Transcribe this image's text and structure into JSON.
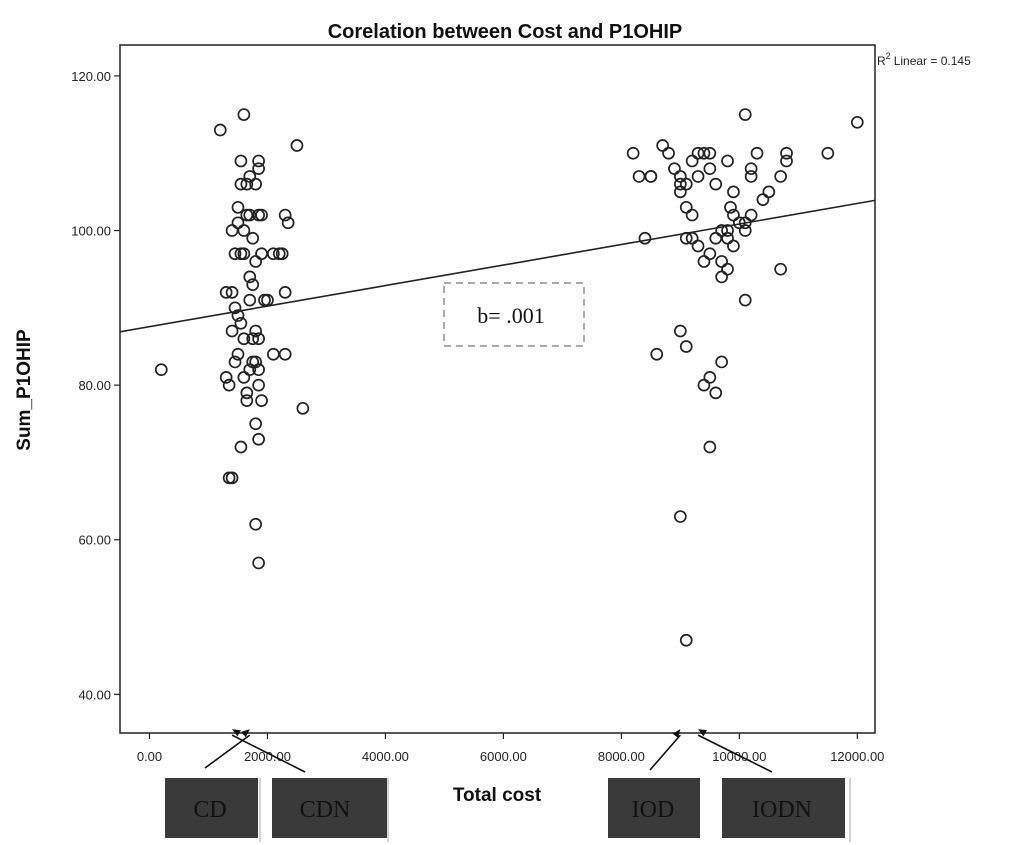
{
  "chart_data": {
    "type": "scatter",
    "title": "Corelation between Cost and P1OHIP",
    "xlabel": "Total cost",
    "ylabel": "Sum_P1OHIP",
    "xlim": [
      -500,
      12300
    ],
    "ylim": [
      35,
      124
    ],
    "x_ticks": [
      0,
      2000,
      4000,
      6000,
      8000,
      10000,
      12000
    ],
    "x_tick_labels": [
      "0.00",
      "2000.00",
      "4000.00",
      "6000.00",
      "8000.00",
      "10000.00",
      "12000.00"
    ],
    "y_ticks": [
      40,
      60,
      80,
      100,
      120
    ],
    "y_tick_labels": [
      "40.00",
      "60.00",
      "80.00",
      "100.00",
      "120.00"
    ],
    "grid": false,
    "r2_label": "Linear = 0.145",
    "r2_prefix": "R",
    "r2_sup": "2",
    "fit_line": {
      "x": [
        -500,
        12300
      ],
      "y": [
        86.9,
        103.9
      ]
    },
    "annotation": {
      "text": "b= .001",
      "x": 6200,
      "y": 89.5
    },
    "group_labels": [
      {
        "text": "CD",
        "arrow_to": [
          1700,
          35.5
        ]
      },
      {
        "text": "CDN",
        "arrow_to": [
          1400,
          35.5
        ]
      },
      {
        "text": "IOD",
        "arrow_to": [
          9000,
          35.5
        ]
      },
      {
        "text": "IODN",
        "arrow_to": [
          9300,
          35.5
        ]
      }
    ],
    "points": [
      [
        200,
        82
      ],
      [
        1200,
        113
      ],
      [
        1600,
        115
      ],
      [
        1300,
        92
      ],
      [
        1400,
        92
      ],
      [
        1300,
        81
      ],
      [
        1350,
        80
      ],
      [
        1400,
        87
      ],
      [
        1450,
        90
      ],
      [
        1500,
        89
      ],
      [
        1500,
        84
      ],
      [
        1450,
        83
      ],
      [
        1550,
        88
      ],
      [
        1600,
        86
      ],
      [
        1600,
        81
      ],
      [
        1650,
        79
      ],
      [
        1650,
        78
      ],
      [
        1700,
        82
      ],
      [
        1700,
        91
      ],
      [
        1750,
        86
      ],
      [
        1800,
        87
      ],
      [
        1850,
        86
      ],
      [
        1750,
        93
      ],
      [
        1800,
        96
      ],
      [
        1700,
        94
      ],
      [
        1600,
        97
      ],
      [
        1550,
        97
      ],
      [
        1450,
        97
      ],
      [
        1400,
        100
      ],
      [
        1500,
        101
      ],
      [
        1600,
        100
      ],
      [
        1500,
        103
      ],
      [
        1650,
        102
      ],
      [
        1700,
        102
      ],
      [
        1550,
        106
      ],
      [
        1650,
        106
      ],
      [
        1700,
        107
      ],
      [
        1800,
        106
      ],
      [
        1550,
        109
      ],
      [
        1850,
        108
      ],
      [
        1850,
        109
      ],
      [
        1850,
        102
      ],
      [
        1900,
        102
      ],
      [
        1750,
        99
      ],
      [
        1900,
        97
      ],
      [
        2000,
        91
      ],
      [
        1950,
        91
      ],
      [
        2100,
        97
      ],
      [
        2200,
        97
      ],
      [
        2250,
        97
      ],
      [
        2300,
        102
      ],
      [
        2350,
        101
      ],
      [
        2100,
        84
      ],
      [
        2300,
        84
      ],
      [
        2300,
        92
      ],
      [
        2500,
        111
      ],
      [
        2600,
        77
      ],
      [
        1850,
        80
      ],
      [
        1850,
        82
      ],
      [
        1900,
        78
      ],
      [
        1750,
        83
      ],
      [
        1800,
        83
      ],
      [
        1800,
        75
      ],
      [
        1850,
        73
      ],
      [
        1550,
        72
      ],
      [
        1350,
        68
      ],
      [
        1400,
        68
      ],
      [
        1800,
        62
      ],
      [
        1850,
        57
      ],
      [
        8200,
        110
      ],
      [
        8300,
        107
      ],
      [
        8500,
        107
      ],
      [
        8500,
        107
      ],
      [
        8700,
        111
      ],
      [
        8800,
        110
      ],
      [
        8900,
        108
      ],
      [
        9000,
        107
      ],
      [
        9000,
        106
      ],
      [
        9100,
        106
      ],
      [
        9200,
        109
      ],
      [
        9300,
        110
      ],
      [
        9400,
        110
      ],
      [
        9500,
        110
      ],
      [
        9000,
        105
      ],
      [
        9100,
        103
      ],
      [
        9200,
        102
      ],
      [
        9300,
        107
      ],
      [
        9500,
        108
      ],
      [
        9600,
        106
      ],
      [
        9800,
        109
      ],
      [
        9500,
        97
      ],
      [
        9600,
        99
      ],
      [
        9700,
        100
      ],
      [
        9800,
        100
      ],
      [
        9800,
        99
      ],
      [
        9900,
        98
      ],
      [
        9850,
        103
      ],
      [
        9900,
        102
      ],
      [
        10000,
        101
      ],
      [
        10100,
        101
      ],
      [
        10100,
        100
      ],
      [
        10200,
        102
      ],
      [
        9700,
        96
      ],
      [
        9400,
        96
      ],
      [
        9300,
        98
      ],
      [
        9200,
        99
      ],
      [
        9100,
        99
      ],
      [
        8400,
        99
      ],
      [
        9900,
        105
      ],
      [
        10200,
        108
      ],
      [
        10300,
        110
      ],
      [
        10400,
        104
      ],
      [
        10500,
        105
      ],
      [
        10200,
        107
      ],
      [
        10100,
        115
      ],
      [
        10700,
        107
      ],
      [
        10800,
        109
      ],
      [
        10800,
        110
      ],
      [
        11500,
        110
      ],
      [
        12000,
        114
      ],
      [
        10700,
        95
      ],
      [
        9700,
        94
      ],
      [
        9800,
        95
      ],
      [
        10100,
        91
      ],
      [
        8600,
        84
      ],
      [
        9000,
        87
      ],
      [
        9100,
        85
      ],
      [
        9700,
        83
      ],
      [
        9500,
        81
      ],
      [
        9400,
        80
      ],
      [
        9600,
        79
      ],
      [
        9500,
        72
      ],
      [
        9000,
        63
      ],
      [
        9100,
        47
      ]
    ]
  }
}
